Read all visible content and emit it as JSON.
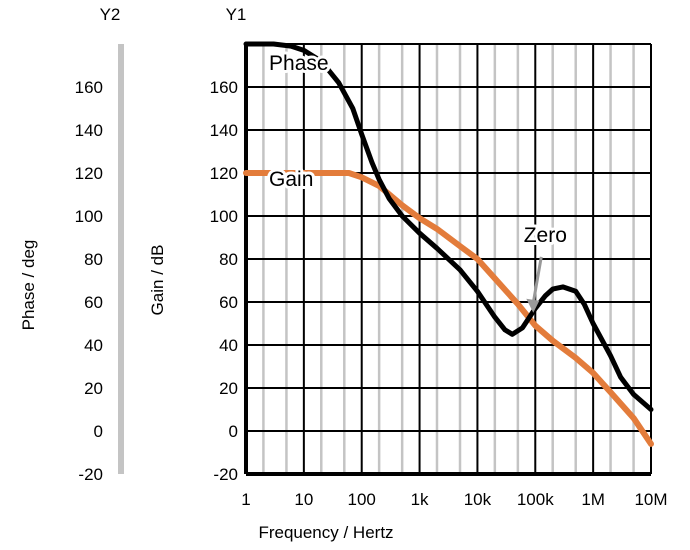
{
  "chart_data": {
    "type": "line",
    "xlabel": "Frequency / Hertz",
    "x_scale": "log",
    "xlim": [
      1,
      10000000
    ],
    "x_ticks": [
      {
        "value": 1,
        "label": "1"
      },
      {
        "value": 10,
        "label": "10"
      },
      {
        "value": 100,
        "label": "100"
      },
      {
        "value": 1000,
        "label": "1k"
      },
      {
        "value": 10000,
        "label": "10k"
      },
      {
        "value": 100000,
        "label": "100k"
      },
      {
        "value": 1000000,
        "label": "1M"
      },
      {
        "value": 10000000,
        "label": "10M"
      }
    ],
    "y1": {
      "name": "Y1",
      "label": "Gain / dB",
      "range": [
        -20,
        180
      ],
      "ticks": [
        -20,
        0,
        20,
        40,
        60,
        80,
        100,
        120,
        140,
        160
      ]
    },
    "y2": {
      "name": "Y2",
      "label": "Phase / deg",
      "range": [
        -20,
        180
      ],
      "ticks": [
        -20,
        0,
        20,
        40,
        60,
        80,
        100,
        120,
        140,
        160
      ]
    },
    "grid": true,
    "series": [
      {
        "name": "Phase",
        "axis": "y2",
        "color": "#000000",
        "x": [
          1,
          3,
          6,
          10,
          20,
          40,
          70,
          100,
          150,
          200,
          300,
          500,
          1000,
          2000,
          5000,
          10000,
          20000,
          30000,
          40000,
          60000,
          100000,
          150000,
          200000,
          300000,
          500000,
          700000,
          1000000,
          2000000,
          3000000,
          5000000,
          10000000
        ],
        "values": [
          180,
          180,
          179,
          177,
          172,
          162,
          150,
          138,
          125,
          117,
          108,
          100,
          92,
          85,
          75,
          65,
          53,
          47,
          45,
          48,
          57,
          63,
          66,
          67,
          65,
          59,
          50,
          35,
          25,
          17,
          10
        ]
      },
      {
        "name": "Gain",
        "axis": "y1",
        "color": "#e37c3b",
        "x": [
          1,
          10,
          30,
          60,
          100,
          200,
          500,
          1000,
          2000,
          5000,
          10000,
          20000,
          50000,
          100000,
          200000,
          500000,
          1000000,
          2000000,
          5000000,
          10000000
        ],
        "values": [
          120,
          120,
          120,
          120,
          118,
          114,
          105,
          99,
          94,
          86,
          80,
          71,
          59,
          49,
          42,
          34,
          27,
          18,
          6,
          -6
        ]
      }
    ],
    "annotations": [
      {
        "text": "Phase",
        "x": 2.5,
        "y": 168
      },
      {
        "text": "Gain",
        "x": 2.5,
        "y": 114
      },
      {
        "text": "Zero",
        "x": 100000,
        "y": 88
      }
    ],
    "arrow": {
      "from": [
        100000,
        81
      ],
      "to": [
        100000,
        55
      ]
    }
  }
}
